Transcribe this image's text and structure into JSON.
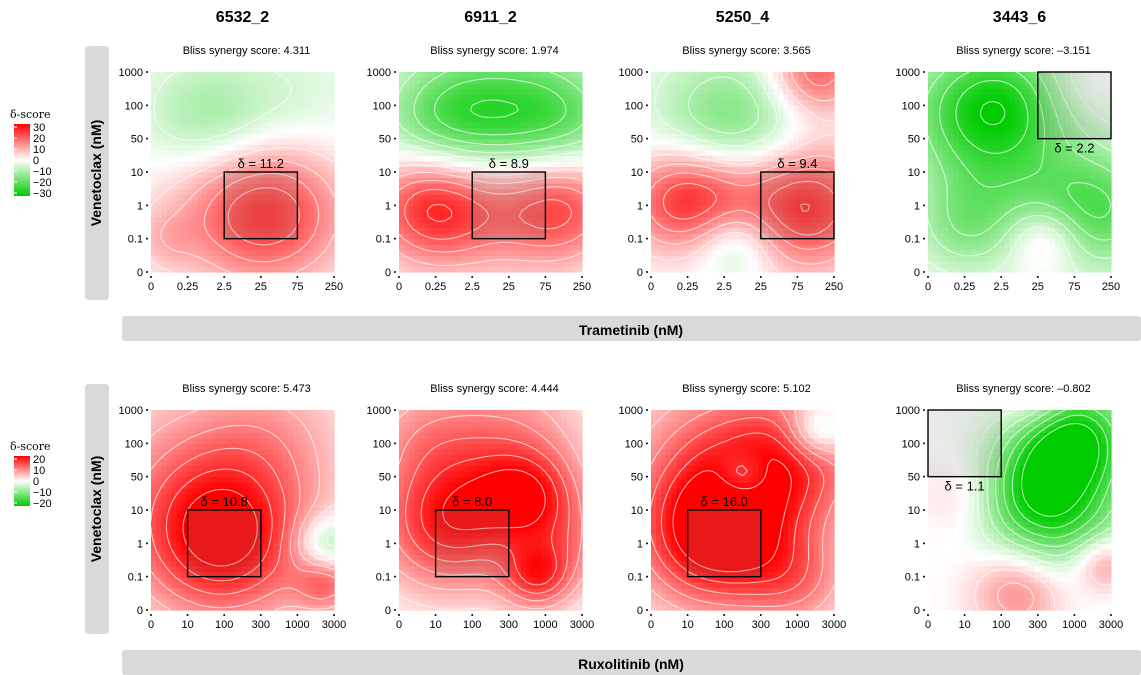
{
  "column_titles": [
    "6532_2",
    "6911_2",
    "5250_4",
    "3443_6"
  ],
  "subtitle_prefix": "Bliss synergy score: ",
  "legend_title": "δ-score",
  "chart_data": [
    {
      "type": "heatmap",
      "row": "top",
      "xlabel": "Trametinib (nM)",
      "ylabel": "Venetoclax (nM)",
      "x_ticks": [
        "0",
        "0.25",
        "2.5",
        "25",
        "75",
        "250"
      ],
      "y_ticks": [
        "0",
        "0.1",
        "1",
        "10",
        "50",
        "100",
        "1000"
      ],
      "legend": {
        "ticks": [
          "30",
          "20",
          "10",
          "0",
          "−10",
          "−20",
          "−30"
        ],
        "range": [
          -30,
          30
        ]
      },
      "colors": {
        "positive": "#ff0000",
        "zero": "#ffffff",
        "negative": "#00cc00",
        "contour": "#ffffff",
        "strip": "#d9d9d9"
      },
      "panels": [
        {
          "sample": "6532_2",
          "bliss_score": "4.311",
          "delta_label": "δ = 11.2",
          "max_area_delta": 11.2,
          "max_area_x": [
            "2.5",
            "75"
          ],
          "max_area_y": [
            "0.1",
            "10"
          ],
          "blobs": [
            {
              "x": 3.4,
              "y": 1.7,
              "v": 17,
              "s": 1.4
            },
            {
              "x": 2.2,
              "y": 2.0,
              "v": 10,
              "s": 1.6
            },
            {
              "x": 1.6,
              "y": 4.6,
              "v": -12,
              "s": 1.3
            },
            {
              "x": 4.2,
              "y": 5.3,
              "v": -4,
              "s": 1.3
            },
            {
              "x": 0.4,
              "y": 1.0,
              "v": 5,
              "s": 0.6
            }
          ]
        },
        {
          "sample": "6911_2",
          "bliss_score": "1.974",
          "delta_label": "δ = 8.9",
          "max_area_delta": 8.9,
          "max_area_x": [
            "2.5",
            "75"
          ],
          "max_area_y": [
            "0.1",
            "10"
          ],
          "blobs": [
            {
              "x": 0.9,
              "y": 2.0,
              "v": 24,
              "s": 1.2
            },
            {
              "x": 4.4,
              "y": 2.0,
              "v": 20,
              "s": 1.2
            },
            {
              "x": 2.6,
              "y": 2.2,
              "v": 10,
              "s": 1.5
            },
            {
              "x": 2.6,
              "y": 4.6,
              "v": -22,
              "s": 1.6
            },
            {
              "x": 1.0,
              "y": 4.5,
              "v": -10,
              "s": 1.2
            },
            {
              "x": 4.6,
              "y": 4.6,
              "v": -12,
              "s": 1.2
            }
          ]
        },
        {
          "sample": "5250_4",
          "bliss_score": "3.565",
          "delta_label": "δ = 9.4",
          "max_area_delta": 9.4,
          "max_area_x": [
            "25",
            "250"
          ],
          "max_area_y": [
            "0.1",
            "10"
          ],
          "blobs": [
            {
              "x": 0.9,
              "y": 2.2,
              "v": 24,
              "s": 1.1
            },
            {
              "x": 4.2,
              "y": 2.0,
              "v": 26,
              "s": 1.3
            },
            {
              "x": 4.5,
              "y": 6.0,
              "v": 20,
              "s": 0.9
            },
            {
              "x": 2.2,
              "y": 4.5,
              "v": -16,
              "s": 1.5
            },
            {
              "x": 2.3,
              "y": 0.9,
              "v": -12,
              "s": 0.8
            },
            {
              "x": 2.2,
              "y": 2.3,
              "v": 6,
              "s": 1.0
            }
          ]
        },
        {
          "sample": "3443_6",
          "bliss_score": "–3.151",
          "delta_label": "δ = 2.2",
          "max_area_delta": 2.2,
          "max_area_x": [
            "25",
            "250"
          ],
          "max_area_y": [
            "50",
            "1000"
          ],
          "blobs": [
            {
              "x": 0.8,
              "y": 5.0,
              "v": -12,
              "s": 1.3
            },
            {
              "x": 2.3,
              "y": 5.2,
              "v": -18,
              "s": 1.3
            },
            {
              "x": 1.8,
              "y": 3.0,
              "v": -12,
              "s": 1.5
            },
            {
              "x": 4.6,
              "y": 1.9,
              "v": -20,
              "s": 1.3
            },
            {
              "x": 1.0,
              "y": 1.3,
              "v": -10,
              "s": 1.0
            },
            {
              "x": 3.2,
              "y": 1.0,
              "v": 12,
              "s": 0.7
            },
            {
              "x": 4.0,
              "y": 5.6,
              "v": 4,
              "s": 0.8
            }
          ]
        }
      ]
    },
    {
      "type": "heatmap",
      "row": "bottom",
      "xlabel": "Ruxolitinib (nM)",
      "ylabel": "Venetoclax (nM)",
      "x_ticks": [
        "0",
        "10",
        "100",
        "300",
        "1000",
        "3000"
      ],
      "y_ticks": [
        "0",
        "0.1",
        "1",
        "10",
        "50",
        "100",
        "1000"
      ],
      "legend": {
        "ticks": [
          "20",
          "10",
          "0",
          "−10",
          "−20"
        ],
        "range": [
          -20,
          20
        ]
      },
      "colors": {
        "positive": "#ff0000",
        "zero": "#ffffff",
        "negative": "#00cc00",
        "contour": "#ffffff",
        "strip": "#d9d9d9"
      },
      "panels": [
        {
          "sample": "6532_2",
          "bliss_score": "5.473",
          "delta_label": "δ = 10.8",
          "max_area_delta": 10.8,
          "max_area_x": [
            "10",
            "300"
          ],
          "max_area_y": [
            "0.1",
            "10"
          ],
          "blobs": [
            {
              "x": 2.0,
              "y": 2.0,
              "v": 18,
              "s": 1.6
            },
            {
              "x": 1.2,
              "y": 3.8,
              "v": 8,
              "s": 2.0
            },
            {
              "x": 3.4,
              "y": 5.2,
              "v": 5,
              "s": 1.5
            },
            {
              "x": 4.8,
              "y": 2.0,
              "v": -10,
              "s": 0.6
            },
            {
              "x": 4.8,
              "y": 0.8,
              "v": 10,
              "s": 0.6
            }
          ]
        },
        {
          "sample": "6911_2",
          "bliss_score": "4.444",
          "delta_label": "δ = 8.0",
          "max_area_delta": 8.0,
          "max_area_x": [
            "10",
            "300"
          ],
          "max_area_y": [
            "0.1",
            "10"
          ],
          "blobs": [
            {
              "x": 1.4,
              "y": 2.6,
              "v": 18,
              "s": 1.4
            },
            {
              "x": 3.6,
              "y": 3.4,
              "v": 14,
              "s": 1.0
            },
            {
              "x": 3.8,
              "y": 1.0,
              "v": 14,
              "s": 0.7
            },
            {
              "x": 3.0,
              "y": 5.3,
              "v": 8,
              "s": 1.5
            },
            {
              "x": 0.6,
              "y": 5.2,
              "v": 6,
              "s": 1.2
            },
            {
              "x": 4.7,
              "y": 2.0,
              "v": 6,
              "s": 0.9
            }
          ]
        },
        {
          "sample": "5250_4",
          "bliss_score": "5.102",
          "delta_label": "δ = 16.0",
          "max_area_delta": 16.0,
          "max_area_x": [
            "10",
            "300"
          ],
          "max_area_y": [
            "0.1",
            "10"
          ],
          "blobs": [
            {
              "x": 1.8,
              "y": 2.2,
              "v": 22,
              "s": 1.5
            },
            {
              "x": 1.8,
              "y": 4.6,
              "v": 10,
              "s": 1.8
            },
            {
              "x": 4.0,
              "y": 4.5,
              "v": 12,
              "s": 1.4
            },
            {
              "x": 4.6,
              "y": 5.4,
              "v": -12,
              "s": 0.6
            },
            {
              "x": 2.5,
              "y": 4.0,
              "v": -8,
              "s": 0.5
            },
            {
              "x": 4.0,
              "y": 0.9,
              "v": 8,
              "s": 1.0
            }
          ]
        },
        {
          "sample": "3443_6",
          "bliss_score": "–0.802",
          "delta_label": "δ = 1.1",
          "max_area_delta": 1.1,
          "max_area_x": [
            "0",
            "100"
          ],
          "max_area_y": [
            "50",
            "1000"
          ],
          "blobs": [
            {
              "x": 3.9,
              "y": 5.1,
              "v": -22,
              "s": 1.1
            },
            {
              "x": 3.6,
              "y": 2.8,
              "v": -14,
              "s": 1.3
            },
            {
              "x": 2.6,
              "y": 3.6,
              "v": -8,
              "s": 1.0
            },
            {
              "x": 2.5,
              "y": 0.6,
              "v": 10,
              "s": 0.9
            },
            {
              "x": 4.8,
              "y": 1.4,
              "v": 10,
              "s": 0.6
            },
            {
              "x": 1.0,
              "y": 3.4,
              "v": 4,
              "s": 0.8
            },
            {
              "x": 3.0,
              "y": 6.2,
              "v": 6,
              "s": 0.7
            }
          ]
        }
      ]
    }
  ]
}
